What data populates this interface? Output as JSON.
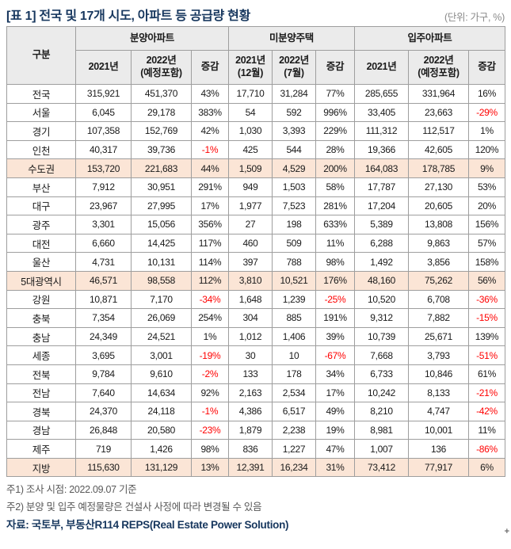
{
  "page": {
    "title": "[표 1] 전국 및 17개 시도, 아파트 등 공급량 현황",
    "unit_label": "(단위: 가구, %)"
  },
  "table": {
    "corner_header": "구분",
    "groups": [
      {
        "label": "분양아파트",
        "subheaders": [
          "2021년",
          "2022년\n(예정포함)",
          "증감"
        ]
      },
      {
        "label": "미분양주택",
        "subheaders": [
          "2021년\n(12월)",
          "2022년\n(7월)",
          "증감"
        ]
      },
      {
        "label": "입주아파트",
        "subheaders": [
          "2021년",
          "2022년\n(예정포함)",
          "증감"
        ]
      }
    ],
    "rows": [
      {
        "label": "전국",
        "highlight": false,
        "values": [
          "315,921",
          "451,370",
          "43%",
          "17,710",
          "31,284",
          "77%",
          "285,655",
          "331,964",
          "16%"
        ]
      },
      {
        "label": "서울",
        "highlight": false,
        "values": [
          "6,045",
          "29,178",
          "383%",
          "54",
          "592",
          "996%",
          "33,405",
          "23,663",
          "-29%"
        ]
      },
      {
        "label": "경기",
        "highlight": false,
        "values": [
          "107,358",
          "152,769",
          "42%",
          "1,030",
          "3,393",
          "229%",
          "111,312",
          "112,517",
          "1%"
        ]
      },
      {
        "label": "인천",
        "highlight": false,
        "values": [
          "40,317",
          "39,736",
          "-1%",
          "425",
          "544",
          "28%",
          "19,366",
          "42,605",
          "120%"
        ]
      },
      {
        "label": "수도권",
        "highlight": true,
        "values": [
          "153,720",
          "221,683",
          "44%",
          "1,509",
          "4,529",
          "200%",
          "164,083",
          "178,785",
          "9%"
        ]
      },
      {
        "label": "부산",
        "highlight": false,
        "values": [
          "7,912",
          "30,951",
          "291%",
          "949",
          "1,503",
          "58%",
          "17,787",
          "27,130",
          "53%"
        ]
      },
      {
        "label": "대구",
        "highlight": false,
        "values": [
          "23,967",
          "27,995",
          "17%",
          "1,977",
          "7,523",
          "281%",
          "17,204",
          "20,605",
          "20%"
        ]
      },
      {
        "label": "광주",
        "highlight": false,
        "values": [
          "3,301",
          "15,056",
          "356%",
          "27",
          "198",
          "633%",
          "5,389",
          "13,808",
          "156%"
        ]
      },
      {
        "label": "대전",
        "highlight": false,
        "values": [
          "6,660",
          "14,425",
          "117%",
          "460",
          "509",
          "11%",
          "6,288",
          "9,863",
          "57%"
        ]
      },
      {
        "label": "울산",
        "highlight": false,
        "values": [
          "4,731",
          "10,131",
          "114%",
          "397",
          "788",
          "98%",
          "1,492",
          "3,856",
          "158%"
        ]
      },
      {
        "label": "5대광역시",
        "highlight": true,
        "values": [
          "46,571",
          "98,558",
          "112%",
          "3,810",
          "10,521",
          "176%",
          "48,160",
          "75,262",
          "56%"
        ]
      },
      {
        "label": "강원",
        "highlight": false,
        "values": [
          "10,871",
          "7,170",
          "-34%",
          "1,648",
          "1,239",
          "-25%",
          "10,520",
          "6,708",
          "-36%"
        ]
      },
      {
        "label": "충북",
        "highlight": false,
        "values": [
          "7,354",
          "26,069",
          "254%",
          "304",
          "885",
          "191%",
          "9,312",
          "7,882",
          "-15%"
        ]
      },
      {
        "label": "충남",
        "highlight": false,
        "values": [
          "24,349",
          "24,521",
          "1%",
          "1,012",
          "1,406",
          "39%",
          "10,739",
          "25,671",
          "139%"
        ]
      },
      {
        "label": "세종",
        "highlight": false,
        "values": [
          "3,695",
          "3,001",
          "-19%",
          "30",
          "10",
          "-67%",
          "7,668",
          "3,793",
          "-51%"
        ]
      },
      {
        "label": "전북",
        "highlight": false,
        "values": [
          "9,784",
          "9,610",
          "-2%",
          "133",
          "178",
          "34%",
          "6,733",
          "10,846",
          "61%"
        ]
      },
      {
        "label": "전남",
        "highlight": false,
        "values": [
          "7,640",
          "14,634",
          "92%",
          "2,163",
          "2,534",
          "17%",
          "10,242",
          "8,133",
          "-21%"
        ]
      },
      {
        "label": "경북",
        "highlight": false,
        "values": [
          "24,370",
          "24,118",
          "-1%",
          "4,386",
          "6,517",
          "49%",
          "8,210",
          "4,747",
          "-42%"
        ]
      },
      {
        "label": "경남",
        "highlight": false,
        "values": [
          "26,848",
          "20,580",
          "-23%",
          "1,879",
          "2,238",
          "19%",
          "8,981",
          "10,001",
          "11%"
        ]
      },
      {
        "label": "제주",
        "highlight": false,
        "values": [
          "719",
          "1,426",
          "98%",
          "836",
          "1,227",
          "47%",
          "1,007",
          "136",
          "-86%"
        ]
      },
      {
        "label": "지방",
        "highlight": true,
        "values": [
          "115,630",
          "131,129",
          "13%",
          "12,391",
          "16,234",
          "31%",
          "73,412",
          "77,917",
          "6%"
        ]
      }
    ]
  },
  "notes": {
    "note1": "주1) 조사 시점: 2022.09.07 기준",
    "note2": "주2) 분양 및 입주 예정물량은 건설사 사정에 따라 변경될 수 있음",
    "source": "자료: 국토부, 부동산R114 REPS(Real Estate Power Solution)"
  },
  "cursor_mark": "+",
  "colors": {
    "title_navy": "#17375e",
    "negative_red": "#ff0000",
    "highlight_peach": "#fbe5d6",
    "header_gray": "#ebebeb",
    "border_gray": "#9e9e9e"
  }
}
